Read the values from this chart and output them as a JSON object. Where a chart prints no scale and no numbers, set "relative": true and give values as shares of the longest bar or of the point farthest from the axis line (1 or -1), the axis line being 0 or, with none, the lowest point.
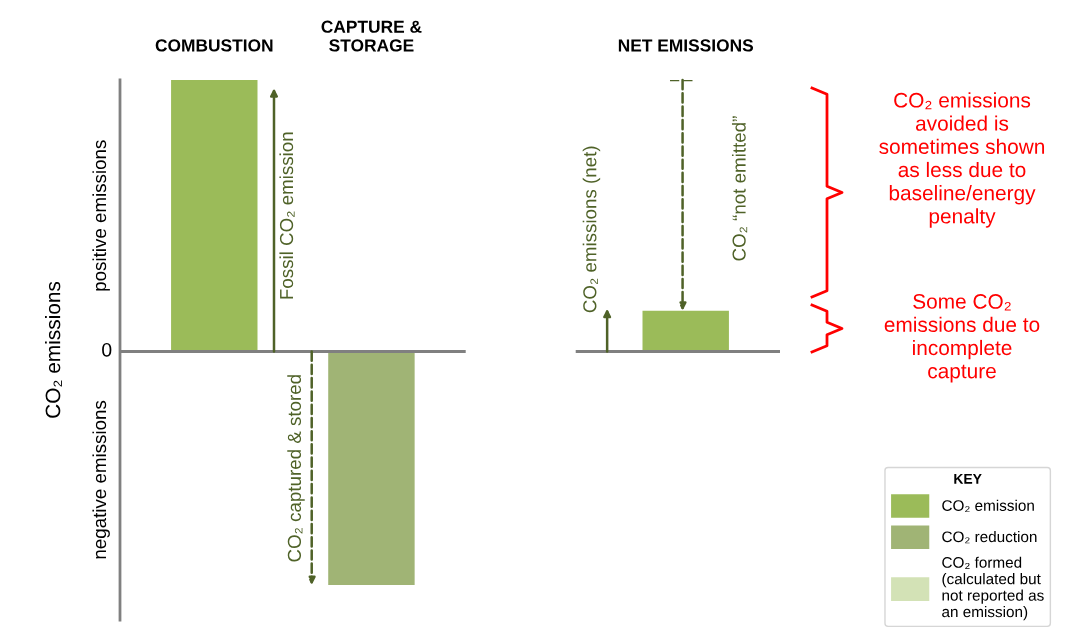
{
  "chart_data": {
    "type": "bar",
    "relative": true,
    "categories": [
      "COMBUSTION",
      "CAPTURE &\nSTORAGE",
      null,
      "NET EMISSIONS"
    ],
    "ylabel": "CO₂ emissions",
    "series": [
      {
        "name": "CO₂ emission",
        "color": "#9bbb59",
        "values": [
          1,
          null,
          null,
          0.15
        ]
      },
      {
        "name": "CO₂ reduction",
        "color": "#a0b475",
        "values": [
          null,
          -0.86,
          null,
          null
        ]
      },
      {
        "name": "CO₂ formed\n(calculated but\nnot reported as\nan emission)",
        "color": "#d3e2b6",
        "values": [
          null,
          null,
          null,
          null
        ]
      }
    ],
    "legend": "bottom right",
    "ref_lines": [
      {
        "axis": "y",
        "value": 0,
        "color": "#808080"
      }
    ],
    "legend_title": "KEY",
    "grid": false,
    "annotations": [
      "0",
      "positive emissions",
      "negative emissions",
      "Fossil CO₂ emission",
      "CO₂ captured & stored",
      "CO₂ emissions (net)",
      "CO₂ “not emitted”",
      "CO₂ emissions\navoided is\nsometimes shown\nas less due to\nbaseline/energy\npenalty",
      "Some CO₂\nemissions due to\nincomplete\ncapture"
    ]
  }
}
